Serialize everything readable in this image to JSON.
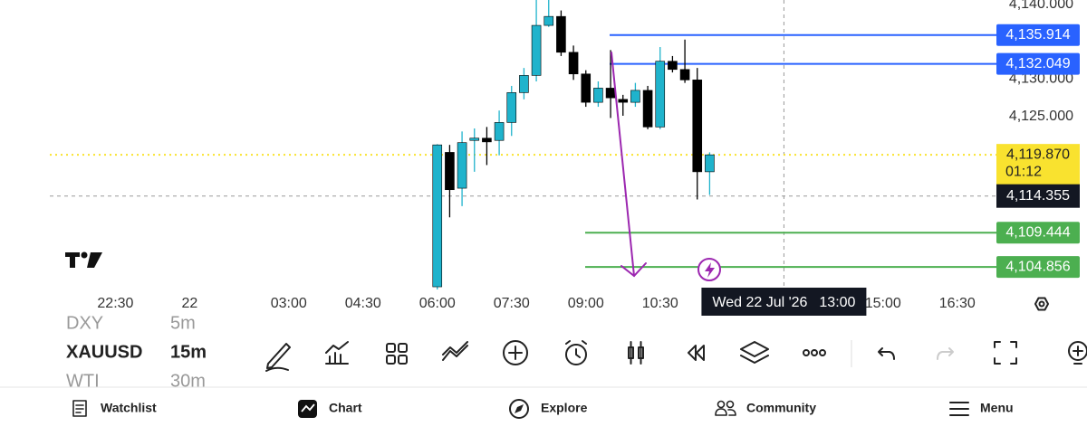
{
  "chart_data": {
    "type": "candlestick",
    "x": [
      0,
      1,
      2,
      3,
      4,
      5,
      6,
      7,
      8,
      9,
      10,
      11,
      12,
      13,
      14,
      15,
      16,
      17,
      18,
      19,
      20,
      21,
      22
    ],
    "open": [
      4102.2,
      4120.2,
      4115.4,
      4121.8,
      4122.1,
      4121.8,
      4124.2,
      4128.2,
      4130.5,
      4137.2,
      4138.4,
      4133.6,
      4130.7,
      4126.9,
      4128.8,
      4127.3,
      4126.9,
      4128.5,
      4123.6,
      4132.4,
      4131.3,
      4129.9,
      4117.6
    ],
    "high": [
      4121.3,
      4121.2,
      4123.0,
      4123.4,
      4123.6,
      4125.8,
      4129.1,
      4131.5,
      4140.6,
      4140.8,
      4139.2,
      4134.5,
      4131.2,
      4129.7,
      4133.9,
      4127.9,
      4129.5,
      4129.1,
      4134.3,
      4133.1,
      4135.3,
      4131.5,
      4120.2
    ],
    "low": [
      4101.0,
      4111.5,
      4113.0,
      4117.6,
      4118.5,
      4119.8,
      4122.4,
      4127.3,
      4129.7,
      4137.0,
      4133.1,
      4129.9,
      4126.3,
      4126.3,
      4124.8,
      4125.1,
      4126.3,
      4123.3,
      4123.3,
      4130.9,
      4129.5,
      4113.9,
      4114.5
    ],
    "close": [
      4121.2,
      4115.2,
      4121.5,
      4122.1,
      4121.6,
      4124.2,
      4128.2,
      4130.5,
      4137.2,
      4138.4,
      4133.6,
      4130.7,
      4126.9,
      4128.8,
      4127.5,
      4126.9,
      4128.5,
      4123.6,
      4132.4,
      4131.3,
      4129.9,
      4117.6,
      4119.87
    ],
    "up_color": "#1fb3cc",
    "down_color": "#000000",
    "xlim": [
      -31.3,
      44.8
    ],
    "ylim": [
      4101.6,
      4140.6
    ],
    "grid": false,
    "xticks": [
      {
        "value": -26,
        "label": "22:30"
      },
      {
        "value": -20,
        "label": "22"
      },
      {
        "value": -12,
        "label": "03:00"
      },
      {
        "value": -6,
        "label": "04:30"
      },
      {
        "value": 0,
        "label": "06:00"
      },
      {
        "value": 6,
        "label": "07:30"
      },
      {
        "value": 12,
        "label": "09:00"
      },
      {
        "value": 18,
        "label": "10:30"
      },
      {
        "value": 36,
        "label": "15:00"
      },
      {
        "value": 42,
        "label": "16:30"
      }
    ],
    "yticks": [
      {
        "value": 4140,
        "label": "4,140.000"
      },
      {
        "value": 4130,
        "label": "4,130.000"
      },
      {
        "value": 4125,
        "label": "4,125.000"
      }
    ],
    "levels": [
      {
        "value": 4135.914,
        "label": "4,135.914",
        "color": "#2962ff"
      },
      {
        "value": 4132.049,
        "label": "4,132.049",
        "color": "#2962ff"
      },
      {
        "value": 4109.444,
        "label": "4,109.444",
        "color": "#4caf50"
      },
      {
        "value": 4104.856,
        "label": "4,104.856",
        "color": "#4caf50"
      }
    ],
    "current": {
      "value": 4119.87,
      "label": "4,119.870",
      "countdown": "01:12",
      "color": "#f9e22f"
    },
    "crosshair": {
      "x": 28,
      "y": 4114.355,
      "y_label": "4,114.355",
      "date_label": "Wed 22 Jul '26",
      "time_label": "13:00"
    }
  },
  "watchlist": [
    {
      "symbol": "DXY",
      "interval": "5m"
    },
    {
      "symbol": "XAUUSD",
      "interval": "15m"
    },
    {
      "symbol": "WTI",
      "interval": "30m"
    }
  ],
  "nav": [
    "Watchlist",
    "Chart",
    "Explore",
    "Community",
    "Menu"
  ]
}
